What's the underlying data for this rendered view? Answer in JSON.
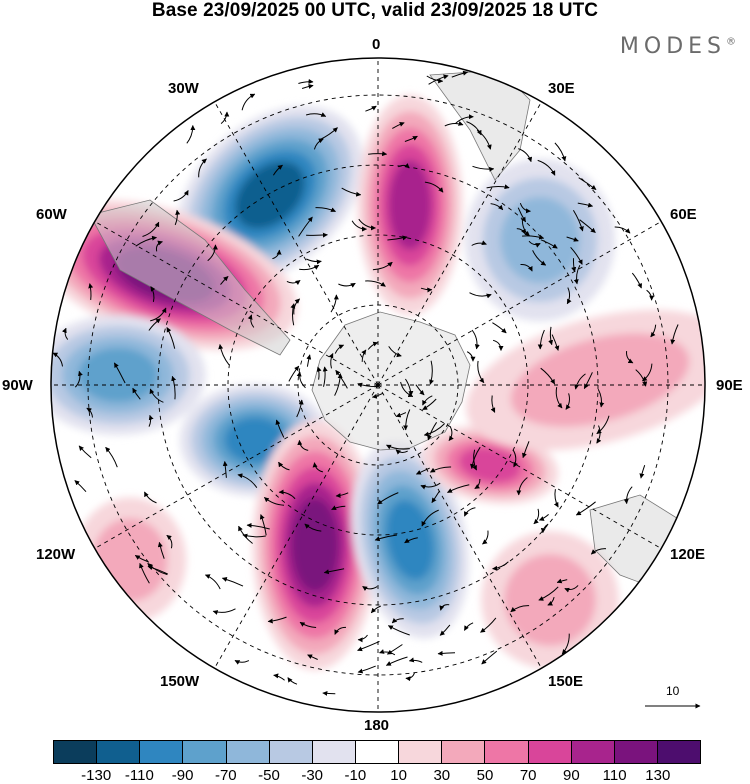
{
  "title": "Base 23/09/2025 00 UTC, valid 23/09/2025 18 UTC",
  "brand": "MODES",
  "brand_mark": "®",
  "longitude_labels": {
    "top": "0",
    "top_right": "30E",
    "right_upper": "60E",
    "right": "90E",
    "right_lower": "120E",
    "bottom_right": "150E",
    "bottom": "180",
    "bottom_left": "150W",
    "left_lower": "120W",
    "left": "90W",
    "left_upper": "60W",
    "top_left": "30W"
  },
  "vector_reference": {
    "value": "10"
  },
  "colorbar": {
    "colors": [
      "#0b3d5c",
      "#105f8f",
      "#2f86c0",
      "#5ea1cc",
      "#8fb7da",
      "#b8c9e3",
      "#e2e2ef",
      "#ffffff",
      "#f7d7dc",
      "#f3a9bb",
      "#ee76a6",
      "#d9459a",
      "#a8248d",
      "#7a137d",
      "#4d0d6e"
    ],
    "labels": [
      "-130",
      "-110",
      "-90",
      "-70",
      "-50",
      "-30",
      "-10",
      "10",
      "30",
      "50",
      "70",
      "90",
      "110",
      "130"
    ]
  },
  "anomaly_centers": [
    {
      "sign": "negative",
      "level": 4,
      "sector": "30W-45W",
      "value": -110
    },
    {
      "sign": "positive",
      "level": 5,
      "sector": "60W-75W",
      "value": 130
    },
    {
      "sign": "positive",
      "level": 3,
      "sector": "5E-15E",
      "value": 90
    },
    {
      "sign": "negative",
      "level": 2,
      "sector": "45E-60E",
      "value": -50
    },
    {
      "sign": "negative",
      "level": 3,
      "sector": "90W",
      "value": -70
    },
    {
      "sign": "negative",
      "level": 3,
      "sector": "110W",
      "value": -90
    },
    {
      "sign": "positive",
      "level": 4,
      "sector": "160W",
      "value": 110
    },
    {
      "sign": "negative",
      "level": 3,
      "sector": "165E",
      "value": -90
    },
    {
      "sign": "positive",
      "level": 3,
      "sector": "115E",
      "value": 70
    },
    {
      "sign": "positive",
      "level": 1,
      "sector": "80E-95E",
      "value": 30
    },
    {
      "sign": "positive",
      "level": 1,
      "sector": "120W",
      "value": 30
    },
    {
      "sign": "positive",
      "level": 1,
      "sector": "135E",
      "value": 30
    }
  ]
}
